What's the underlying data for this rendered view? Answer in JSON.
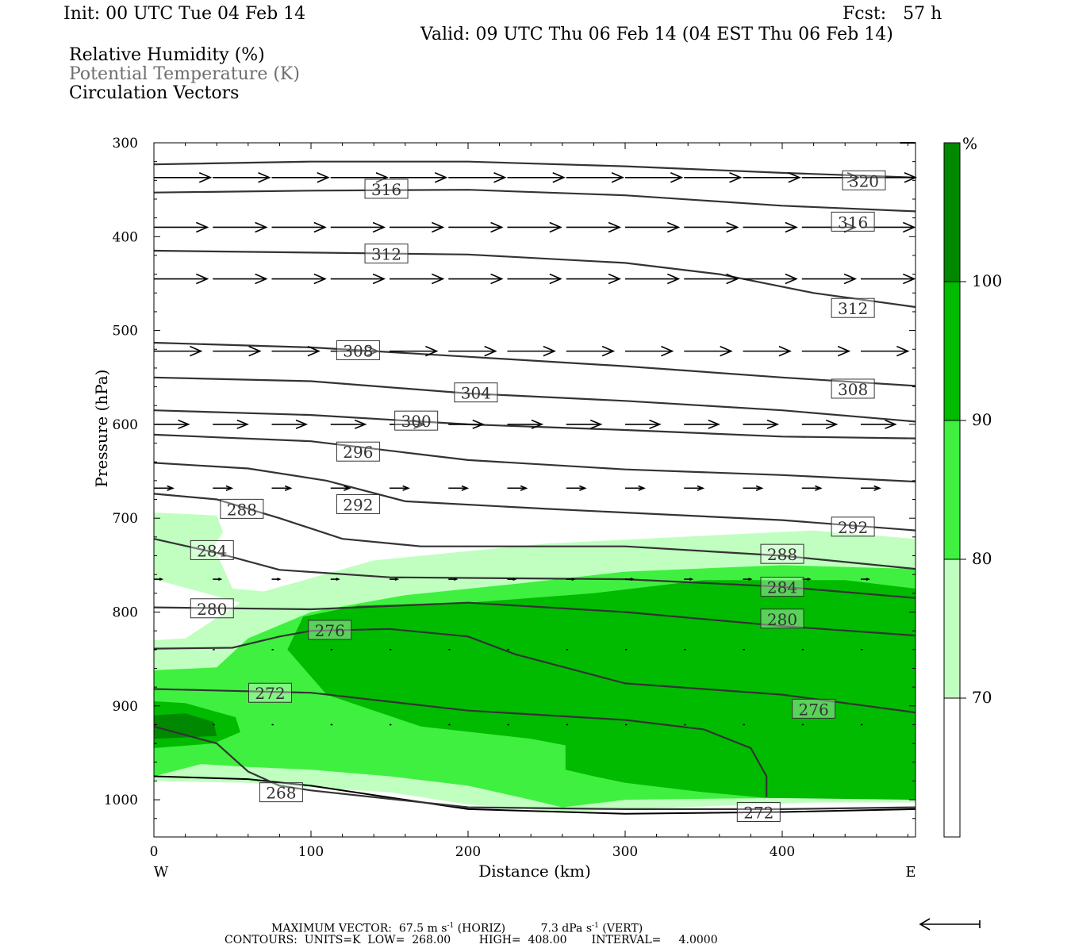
{
  "header": {
    "init": "Init: 00 UTC Tue 04 Feb 14",
    "fcst": "Fcst:   57 h",
    "valid": "Valid: 09 UTC Thu 06 Feb 14 (04 EST Thu 06 Feb 14)",
    "fields": [
      "Relative Humidity (%)",
      "Potential Temperature (K)",
      "Circulation Vectors"
    ]
  },
  "chart_data": {
    "type": "cross-section",
    "xlabel": "Distance (km)",
    "ylabel": "Pressure (hPa)",
    "xlim": [
      0,
      485
    ],
    "ylim": [
      300,
      1040
    ],
    "y_inverted": true,
    "x_ticks": [
      0,
      100,
      200,
      300,
      400
    ],
    "y_ticks": [
      300,
      400,
      500,
      600,
      700,
      800,
      900,
      1000
    ],
    "x_end_labels": {
      "left": "W",
      "right": "E"
    },
    "colorbar": {
      "unit_label": "%",
      "levels": [
        70,
        80,
        90,
        100
      ],
      "colors": [
        "#ffffff",
        "#c0ffc0",
        "#40f040",
        "#00bb00",
        "#008800"
      ]
    },
    "rh_fill": [
      {
        "level": 70,
        "color": "#c0ffc0",
        "points": [
          [
            0,
            694
          ],
          [
            40,
            697
          ],
          [
            44,
            715
          ],
          [
            38,
            730
          ],
          [
            50,
            775
          ],
          [
            70,
            778
          ],
          [
            140,
            745
          ],
          [
            250,
            727
          ],
          [
            420,
            713
          ],
          [
            485,
            722
          ],
          [
            485,
            1003
          ],
          [
            420,
            1003
          ],
          [
            300,
            1010
          ],
          [
            260,
            1013
          ],
          [
            200,
            1005
          ],
          [
            150,
            992
          ],
          [
            110,
            988
          ],
          [
            60,
            982
          ],
          [
            0,
            980
          ],
          [
            0,
            830
          ],
          [
            20,
            828
          ],
          [
            55,
            790
          ],
          [
            0,
            765
          ]
        ]
      },
      {
        "level": 80,
        "color": "#40f040",
        "points": [
          [
            0,
            862
          ],
          [
            40,
            859
          ],
          [
            60,
            828
          ],
          [
            100,
            800
          ],
          [
            160,
            782
          ],
          [
            230,
            770
          ],
          [
            300,
            757
          ],
          [
            400,
            750
          ],
          [
            485,
            754
          ],
          [
            485,
            995
          ],
          [
            400,
            998
          ],
          [
            300,
            1000
          ],
          [
            260,
            1008
          ],
          [
            240,
            1000
          ],
          [
            200,
            985
          ],
          [
            150,
            975
          ],
          [
            100,
            968
          ],
          [
            60,
            965
          ],
          [
            30,
            962
          ],
          [
            0,
            975
          ]
        ]
      },
      {
        "level": 90,
        "color": "#00bb00",
        "points": [
          [
            85,
            840
          ],
          [
            95,
            805
          ],
          [
            130,
            793
          ],
          [
            200,
            790
          ],
          [
            280,
            780
          ],
          [
            350,
            766
          ],
          [
            440,
            766
          ],
          [
            485,
            775
          ],
          [
            485,
            1000
          ],
          [
            390,
            998
          ],
          [
            350,
            992
          ],
          [
            300,
            982
          ],
          [
            280,
            975
          ],
          [
            262,
            968
          ],
          [
            262,
            942
          ],
          [
            240,
            935
          ],
          [
            170,
            922
          ],
          [
            110,
            888
          ]
        ]
      },
      {
        "level": 90,
        "color": "#00bb00",
        "points": [
          [
            0,
            895
          ],
          [
            20,
            897
          ],
          [
            52,
            912
          ],
          [
            55,
            928
          ],
          [
            38,
            940
          ],
          [
            0,
            945
          ]
        ]
      },
      {
        "level": 100,
        "color": "#008800",
        "points": [
          [
            0,
            910
          ],
          [
            20,
            908
          ],
          [
            38,
            917
          ],
          [
            40,
            932
          ],
          [
            0,
            935
          ]
        ]
      }
    ],
    "theta_contours": [
      {
        "value": 320,
        "points": [
          [
            0,
            323
          ],
          [
            100,
            320
          ],
          [
            200,
            320
          ],
          [
            300,
            325
          ],
          [
            400,
            332
          ],
          [
            485,
            337
          ]
        ],
        "labels": [
          [
            452,
            340
          ]
        ]
      },
      {
        "value": 316,
        "points": [
          [
            0,
            353
          ],
          [
            100,
            351
          ],
          [
            200,
            350
          ],
          [
            300,
            356
          ],
          [
            400,
            367
          ],
          [
            485,
            373
          ]
        ],
        "labels": [
          [
            148,
            349
          ],
          [
            445,
            384
          ]
        ]
      },
      {
        "value": 312,
        "points": [
          [
            0,
            415
          ],
          [
            100,
            417
          ],
          [
            200,
            419
          ],
          [
            300,
            428
          ],
          [
            360,
            440
          ],
          [
            420,
            460
          ],
          [
            485,
            475
          ]
        ],
        "labels": [
          [
            148,
            418
          ],
          [
            445,
            476
          ]
        ]
      },
      {
        "value": 308,
        "points": [
          [
            0,
            513
          ],
          [
            100,
            518
          ],
          [
            200,
            528
          ],
          [
            300,
            538
          ],
          [
            400,
            550
          ],
          [
            485,
            559
          ]
        ],
        "labels": [
          [
            130,
            521
          ],
          [
            445,
            562
          ]
        ]
      },
      {
        "value": 304,
        "points": [
          [
            0,
            550
          ],
          [
            100,
            554
          ],
          [
            200,
            567
          ],
          [
            300,
            575
          ],
          [
            400,
            585
          ],
          [
            485,
            597
          ]
        ],
        "labels": [
          [
            205,
            566
          ]
        ]
      },
      {
        "value": 300,
        "points": [
          [
            0,
            585
          ],
          [
            100,
            590
          ],
          [
            200,
            600
          ],
          [
            300,
            606
          ],
          [
            400,
            613
          ],
          [
            485,
            615
          ]
        ],
        "labels": [
          [
            167,
            596
          ]
        ]
      },
      {
        "value": 296,
        "points": [
          [
            0,
            611
          ],
          [
            100,
            618
          ],
          [
            200,
            638
          ],
          [
            300,
            648
          ],
          [
            400,
            654
          ],
          [
            485,
            661
          ]
        ],
        "labels": [
          [
            130,
            629
          ]
        ]
      },
      {
        "value": 292,
        "points": [
          [
            0,
            641
          ],
          [
            60,
            647
          ],
          [
            110,
            660
          ],
          [
            160,
            682
          ],
          [
            250,
            690
          ],
          [
            400,
            702
          ],
          [
            485,
            713
          ]
        ],
        "labels": [
          [
            130,
            685
          ],
          [
            445,
            709
          ]
        ]
      },
      {
        "value": 288,
        "points": [
          [
            0,
            674
          ],
          [
            40,
            680
          ],
          [
            80,
            700
          ],
          [
            120,
            722
          ],
          [
            170,
            730
          ],
          [
            300,
            730
          ],
          [
            400,
            740
          ],
          [
            485,
            754
          ]
        ],
        "labels": [
          [
            56,
            690
          ],
          [
            400,
            738
          ]
        ]
      },
      {
        "value": 284,
        "points": [
          [
            0,
            722
          ],
          [
            40,
            737
          ],
          [
            80,
            755
          ],
          [
            150,
            763
          ],
          [
            300,
            765
          ],
          [
            400,
            773
          ],
          [
            485,
            785
          ]
        ],
        "labels": [
          [
            37,
            734
          ],
          [
            400,
            773
          ]
        ]
      },
      {
        "value": 280,
        "points": [
          [
            0,
            795
          ],
          [
            100,
            797
          ],
          [
            200,
            790
          ],
          [
            300,
            800
          ],
          [
            400,
            815
          ],
          [
            485,
            825
          ]
        ],
        "labels": [
          [
            37,
            796
          ],
          [
            400,
            807
          ]
        ]
      },
      {
        "value": 276,
        "points": [
          [
            0,
            839
          ],
          [
            50,
            838
          ],
          [
            80,
            826
          ],
          [
            100,
            820
          ],
          [
            150,
            818
          ],
          [
            200,
            826
          ],
          [
            230,
            845
          ],
          [
            300,
            876
          ],
          [
            400,
            888
          ],
          [
            485,
            907
          ]
        ],
        "labels": [
          [
            112,
            819
          ],
          [
            420,
            903
          ]
        ]
      },
      {
        "value": 272,
        "points": [
          [
            0,
            882
          ],
          [
            100,
            886
          ],
          [
            200,
            905
          ],
          [
            300,
            915
          ],
          [
            350,
            925
          ],
          [
            380,
            945
          ],
          [
            390,
            975
          ],
          [
            390,
            997
          ]
        ],
        "labels": [
          [
            74,
            886
          ],
          [
            385,
            1013
          ]
        ]
      },
      {
        "value": 268,
        "points": [
          [
            0,
            922
          ],
          [
            40,
            940
          ],
          [
            60,
            970
          ],
          [
            80,
            985
          ],
          [
            100,
            990
          ],
          [
            200,
            1008
          ],
          [
            300,
            1010
          ],
          [
            400,
            1010
          ],
          [
            485,
            1008
          ]
        ],
        "labels": [
          [
            81,
            992
          ]
        ]
      }
    ],
    "vectors": [
      {
        "y": 337,
        "count": 13,
        "length_km": 36
      },
      {
        "y": 390,
        "count": 13,
        "length_km": 34
      },
      {
        "y": 445,
        "count": 13,
        "length_km": 34
      },
      {
        "y": 522,
        "count": 13,
        "length_km": 30
      },
      {
        "y": 600,
        "count": 13,
        "length_km": 22
      },
      {
        "y": 668,
        "count": 13,
        "length_km": 12
      },
      {
        "y": 765,
        "count": 13,
        "length_km": 5
      },
      {
        "y": 840,
        "count": 13,
        "length_km": 1.2
      },
      {
        "y": 920,
        "count": 13,
        "length_km": 1.2
      }
    ],
    "surface_line": [
      [
        0,
        975
      ],
      [
        60,
        978
      ],
      [
        100,
        985
      ],
      [
        200,
        1010
      ],
      [
        300,
        1015
      ],
      [
        400,
        1013
      ],
      [
        485,
        1010
      ]
    ],
    "top_line": [
      [
        475,
        300
      ],
      [
        485,
        300
      ]
    ]
  },
  "footer": {
    "max_vector_label": "MAXIMUM VECTOR:",
    "horiz": "67.5 m s",
    "horiz_suffix": " (HORIZ)",
    "vert": "7.3 dPa s",
    "vert_suffix": " (VERT)",
    "exp": "-1",
    "contours": "CONTOURS:  UNITS=K  LOW=  268.00        HIGH=  408.00       INTERVAL=     4.0000"
  }
}
